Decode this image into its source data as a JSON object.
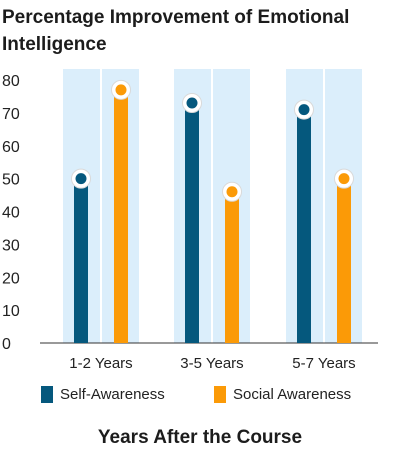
{
  "chart_data": {
    "type": "bar",
    "title": "Percentage Improvement of Emotional Intelligence",
    "xlabel": "Years After the Course",
    "ylabel": "",
    "categories": [
      "1-2 Years",
      "3-5 Years",
      "5-7 Years"
    ],
    "series": [
      {
        "name": "Self-Awareness",
        "color": "#05587d",
        "values": [
          50,
          73,
          71
        ]
      },
      {
        "name": "Social Awareness",
        "color": "#fb9a07",
        "values": [
          77,
          46,
          50
        ]
      }
    ],
    "ylim": [
      0,
      80
    ],
    "yticks": [
      0,
      10,
      20,
      30,
      40,
      50,
      60,
      70,
      80
    ],
    "background_band_color": "#dbeefb",
    "legend_position": "bottom",
    "grid": false
  }
}
